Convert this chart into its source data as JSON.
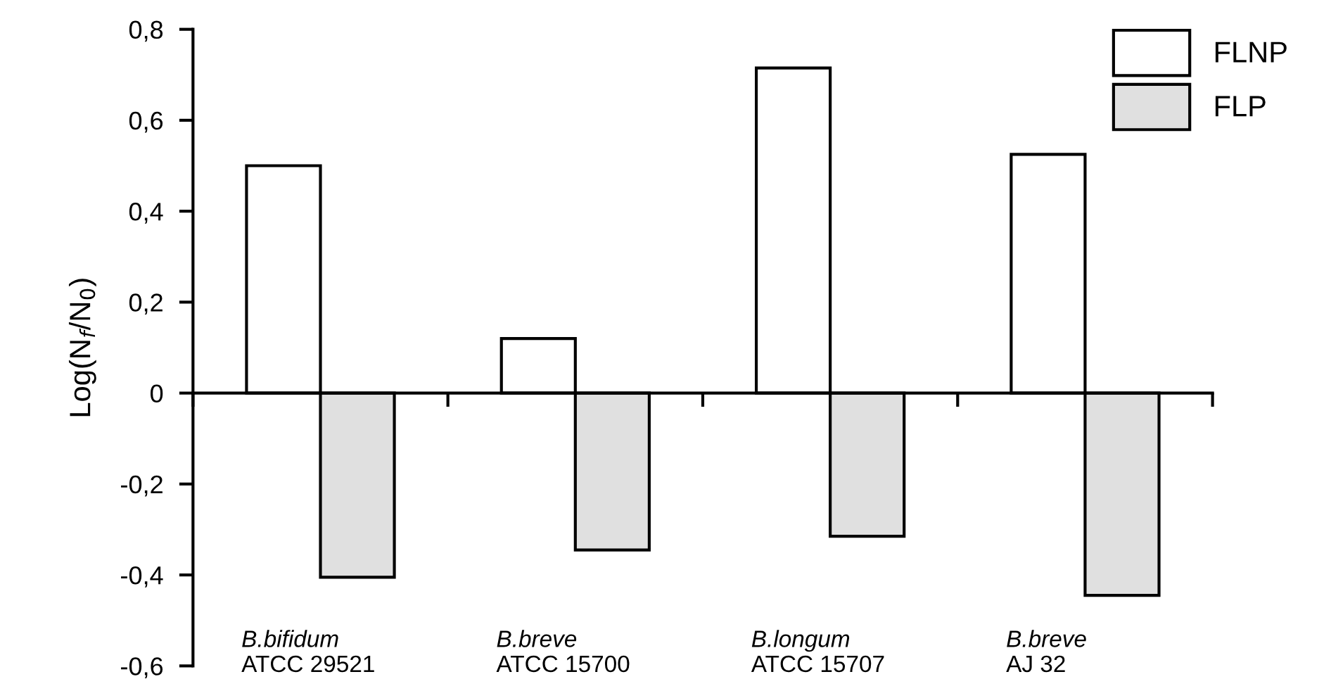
{
  "chart_data": {
    "type": "bar",
    "ylabel": "Log(N$_{f}$/N$_{0}$)",
    "categories": [
      "B.bifidum\nATCC 29521",
      "B.breve\nATCC 15700",
      "B.longum\nATCC 15707",
      "B.breve\nAJ 32"
    ],
    "series": [
      {
        "name": "FLNP",
        "color": "#ffffff",
        "values": [
          0.5,
          0.12,
          0.715,
          0.525
        ]
      },
      {
        "name": "FLP",
        "color": "#e0e0e0",
        "values": [
          -0.405,
          -0.345,
          -0.315,
          -0.445
        ]
      }
    ],
    "ylim": [
      -0.6,
      0.8
    ],
    "yticks": [
      {
        "value": -0.6,
        "label": "-0,6"
      },
      {
        "value": -0.4,
        "label": "-0,4"
      },
      {
        "value": -0.2,
        "label": "-0,2"
      },
      {
        "value": 0,
        "label": "0"
      },
      {
        "value": 0.2,
        "label": "0,2"
      },
      {
        "value": 0.4,
        "label": "0,4"
      },
      {
        "value": 0.6,
        "label": "0,6"
      },
      {
        "value": 0.8,
        "label": "0,8"
      }
    ],
    "legend": "top right"
  }
}
